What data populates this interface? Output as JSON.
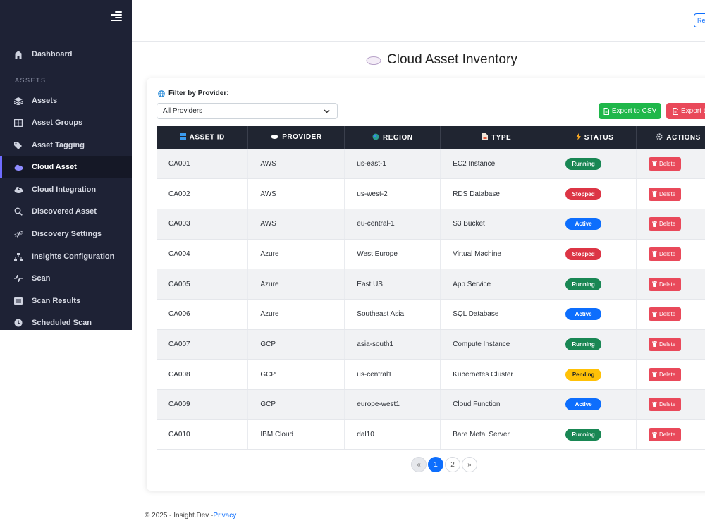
{
  "sidebar": {
    "section_label": "ASSETS",
    "items": [
      {
        "label": "Dashboard",
        "icon": "home-icon"
      },
      {
        "label": "Assets",
        "icon": "layers-icon"
      },
      {
        "label": "Asset Groups",
        "icon": "grid-icon"
      },
      {
        "label": "Asset Tagging",
        "icon": "tags-icon"
      },
      {
        "label": "Cloud Asset",
        "icon": "cloud-icon",
        "active": true
      },
      {
        "label": "Cloud Integration",
        "icon": "cloud-upload-icon"
      },
      {
        "label": "Discovered Asset",
        "icon": "search-icon"
      },
      {
        "label": "Discovery Settings",
        "icon": "gears-icon"
      },
      {
        "label": "Insights Configuration",
        "icon": "sitemap-icon"
      },
      {
        "label": "Scan",
        "icon": "pulse-icon"
      },
      {
        "label": "Scan Results",
        "icon": "list-icon"
      },
      {
        "label": "Scheduled Scan",
        "icon": "clock-icon"
      }
    ]
  },
  "topbar": {
    "button_label": "Re"
  },
  "page": {
    "title": "Cloud Asset Inventory"
  },
  "filter": {
    "label": "Filter by Provider:",
    "selected": "All Providers"
  },
  "actions": {
    "export_csv": "Export to CSV",
    "export_pdf": "Export t"
  },
  "table": {
    "headers": [
      "ASSET ID",
      "PROVIDER",
      "REGION",
      "TYPE",
      "STATUS",
      "ACTIONS"
    ],
    "delete_label": "Delete",
    "rows": [
      {
        "id": "CA001",
        "provider": "AWS",
        "region": "us-east-1",
        "type": "EC2 Instance",
        "status": "Running"
      },
      {
        "id": "CA002",
        "provider": "AWS",
        "region": "us-west-2",
        "type": "RDS Database",
        "status": "Stopped"
      },
      {
        "id": "CA003",
        "provider": "AWS",
        "region": "eu-central-1",
        "type": "S3 Bucket",
        "status": "Active"
      },
      {
        "id": "CA004",
        "provider": "Azure",
        "region": "West Europe",
        "type": "Virtual Machine",
        "status": "Stopped"
      },
      {
        "id": "CA005",
        "provider": "Azure",
        "region": "East US",
        "type": "App Service",
        "status": "Running"
      },
      {
        "id": "CA006",
        "provider": "Azure",
        "region": "Southeast Asia",
        "type": "SQL Database",
        "status": "Active"
      },
      {
        "id": "CA007",
        "provider": "GCP",
        "region": "asia-south1",
        "type": "Compute Instance",
        "status": "Running"
      },
      {
        "id": "CA008",
        "provider": "GCP",
        "region": "us-central1",
        "type": "Kubernetes Cluster",
        "status": "Pending"
      },
      {
        "id": "CA009",
        "provider": "GCP",
        "region": "europe-west1",
        "type": "Cloud Function",
        "status": "Active"
      },
      {
        "id": "CA010",
        "provider": "IBM Cloud",
        "region": "dal10",
        "type": "Bare Metal Server",
        "status": "Running"
      }
    ]
  },
  "status_colors": {
    "Running": "#198754",
    "Stopped": "#dc3545",
    "Active": "#0d6efd",
    "Pending": "#ffc107"
  },
  "pagination": {
    "prev": "«",
    "pages": [
      "1",
      "2"
    ],
    "next": "»",
    "current": "1"
  },
  "footer": {
    "text": "© 2025 - Insight.Dev -",
    "link": "Privacy"
  }
}
